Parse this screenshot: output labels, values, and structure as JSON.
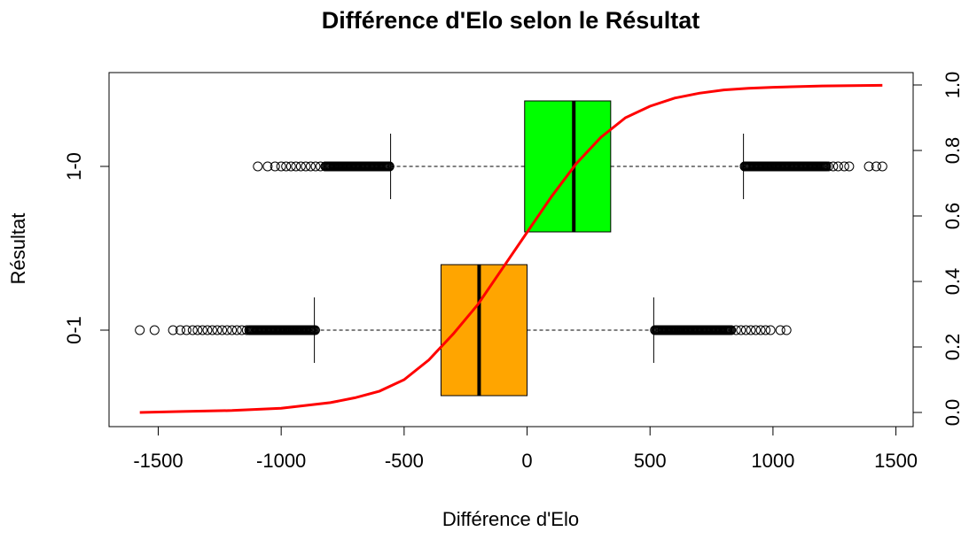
{
  "chart_data": {
    "type": "boxplot",
    "title": "Différence d'Elo selon le Résultat",
    "xlabel": "Différence d'Elo",
    "ylabel": "Résultat",
    "xlim": [
      -1700,
      1570
    ],
    "x_ticks": [
      -1500,
      -1000,
      -500,
      0,
      500,
      1000,
      1500
    ],
    "x_tick_labels": [
      "-1500",
      "-1000",
      "-500",
      "0",
      "500",
      "1000",
      "1500"
    ],
    "categories": [
      "0-1",
      "1-0"
    ],
    "boxes": [
      {
        "category": "0-1",
        "color": "#FFA500",
        "whisker_low": -865,
        "q1": -350,
        "median": -195,
        "q3": 0,
        "whisker_high": 515,
        "outliers_low": [
          -1575,
          -1515,
          -1440,
          -1410,
          -1385,
          -1360,
          -1340,
          -1320,
          -1300,
          -1280,
          -1260,
          -1240,
          -1220,
          -1200,
          -1180,
          -1160,
          -1140,
          -1120,
          -1100,
          -1080,
          -1060,
          -1040,
          -1020,
          -1000,
          -980,
          -960,
          -940,
          -920,
          -900,
          -880
        ],
        "outliers_high": [
          530,
          550,
          570,
          590,
          610,
          630,
          650,
          670,
          690,
          710,
          730,
          750,
          770,
          790,
          810,
          830,
          850,
          870,
          890,
          910,
          930,
          950,
          970,
          990,
          1030,
          1055
        ]
      },
      {
        "category": "1-0",
        "color": "#00FF00",
        "whisker_low": -555,
        "q1": -10,
        "median": 190,
        "q3": 340,
        "whisker_high": 880,
        "outliers_low": [
          -1095,
          -1055,
          -1025,
          -1000,
          -980,
          -960,
          -940,
          -920,
          -900,
          -880,
          -860,
          -840,
          -820,
          -800,
          -780,
          -760,
          -740,
          -720,
          -700,
          -680,
          -660,
          -640,
          -620,
          -600,
          -580,
          -560
        ],
        "outliers_high": [
          885,
          905,
          925,
          945,
          965,
          985,
          1005,
          1025,
          1045,
          1065,
          1085,
          1105,
          1125,
          1145,
          1165,
          1185,
          1205,
          1225,
          1245,
          1265,
          1290,
          1310,
          1390,
          1420,
          1445
        ]
      }
    ],
    "secondary_axis": {
      "ylim": [
        0,
        1
      ],
      "ticks": [
        0.0,
        0.2,
        0.4,
        0.6,
        0.8,
        1.0
      ],
      "tick_labels": [
        "0.0",
        "0.2",
        "0.4",
        "0.6",
        "0.8",
        "1.0"
      ]
    },
    "curve": {
      "color": "#FF0000",
      "x": [
        -1575,
        -1400,
        -1200,
        -1000,
        -800,
        -700,
        -600,
        -500,
        -400,
        -300,
        -200,
        -100,
        0,
        100,
        200,
        300,
        400,
        500,
        600,
        700,
        800,
        900,
        1000,
        1200,
        1445
      ],
      "y": [
        0.0,
        0.003,
        0.006,
        0.013,
        0.03,
        0.045,
        0.065,
        0.1,
        0.16,
        0.24,
        0.33,
        0.44,
        0.55,
        0.66,
        0.76,
        0.84,
        0.9,
        0.935,
        0.96,
        0.975,
        0.985,
        0.99,
        0.993,
        0.997,
        0.999
      ]
    },
    "grid": false,
    "legend": "none"
  }
}
